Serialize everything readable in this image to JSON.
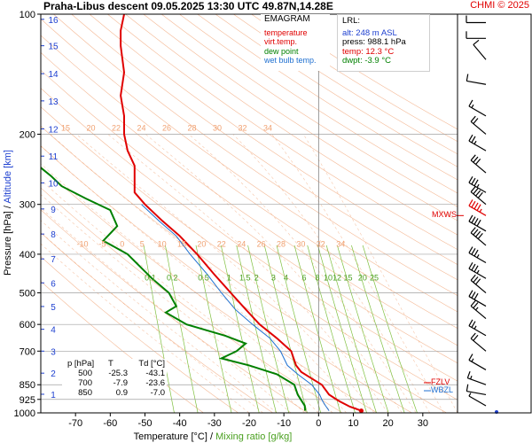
{
  "header": {
    "title": "Praha-Libus   descent   09.05.2025 13:30 UTC  49.87N,14.28E",
    "credit": "CHMI © 2025"
  },
  "legend": {
    "title": "EMAGRAM",
    "items": [
      {
        "label": "temperature",
        "color": "#e00000"
      },
      {
        "label": "virt.temp.",
        "color": "#e00000"
      },
      {
        "label": "dew point",
        "color": "#008000"
      },
      {
        "label": "wet bulb temp.",
        "color": "#1e6fd0"
      }
    ]
  },
  "lrl": {
    "title": "LRL:",
    "alt": "alt: 248 m ASL",
    "press": "press: 988.1 hPa",
    "temp": "temp: 12.3 °C",
    "dwpt": "dwpt: -3.9 °C"
  },
  "table": {
    "headers": [
      "p [hPa]",
      "T",
      "Td [°C]"
    ],
    "rows": [
      [
        "500",
        "-25.3",
        "-43.1"
      ],
      [
        "700",
        "-7.9",
        "-23.6"
      ],
      [
        "850",
        "0.9",
        "-7.0"
      ]
    ]
  },
  "markers": {
    "mxws": "MXWS",
    "fzlv": "FZLV",
    "wbzl": "WBZL"
  },
  "colors": {
    "temperature": "#e00000",
    "dewpoint": "#008000",
    "wetbulb": "#1e6fd0",
    "dry_adiabat": "#f0a070",
    "mixing_ratio": "#80c040",
    "isobar": "#a0a0a0"
  },
  "chart_data": {
    "type": "line",
    "title": "Praha-Libus   descent   09.05.2025 13:30 UTC  49.87N,14.28E",
    "xlabel": "Temperature [°C]",
    "xlabel2": "Mixing ratio [g/kg]",
    "ylabel": "Pressure [hPa]",
    "ylabel2": "Altitude [km]",
    "xlim": [
      -80,
      40
    ],
    "ylim": [
      1000,
      100
    ],
    "y_scale": "log",
    "x_ticks": [
      -70,
      -60,
      -50,
      -40,
      -30,
      -20,
      -10,
      0,
      10,
      20,
      30
    ],
    "pressure_ticks": [
      100,
      200,
      300,
      400,
      500,
      600,
      700,
      850,
      925,
      1000
    ],
    "altitude_ticks": [
      {
        "km": 1,
        "p": 898
      },
      {
        "km": 2,
        "p": 795
      },
      {
        "km": 3,
        "p": 700
      },
      {
        "km": 4,
        "p": 617
      },
      {
        "km": 5,
        "p": 541
      },
      {
        "km": 6,
        "p": 472
      },
      {
        "km": 7,
        "p": 411
      },
      {
        "km": 8,
        "p": 356
      },
      {
        "km": 9,
        "p": 308
      },
      {
        "km": 10,
        "p": 265
      },
      {
        "km": 11,
        "p": 227
      },
      {
        "km": 12,
        "p": 194
      },
      {
        "km": 13,
        "p": 165
      },
      {
        "km": 14,
        "p": 141
      },
      {
        "km": 15,
        "p": 120
      },
      {
        "km": 16,
        "p": 103
      }
    ],
    "dry_adiabat_labels": [
      15,
      20,
      22,
      24,
      26,
      28,
      30,
      32,
      34
    ],
    "moist_adiabat_labels": [
      -10,
      -5,
      0,
      5,
      10,
      15,
      20,
      22,
      24,
      26,
      28,
      30,
      32,
      34
    ],
    "mixing_ratio_labels": [
      0.1,
      0.2,
      0.5,
      1,
      1.5,
      2,
      3,
      4,
      6,
      8,
      10,
      12,
      15,
      20,
      25
    ],
    "series": [
      {
        "name": "temperature",
        "points": [
          [
            12.3,
            988
          ],
          [
            9,
            965
          ],
          [
            6,
            935
          ],
          [
            3,
            900
          ],
          [
            0.9,
            850
          ],
          [
            -2,
            820
          ],
          [
            -5,
            790
          ],
          [
            -6.5,
            760
          ],
          [
            -7.9,
            700
          ],
          [
            -12,
            650
          ],
          [
            -17,
            600
          ],
          [
            -21,
            550
          ],
          [
            -25.3,
            500
          ],
          [
            -30,
            450
          ],
          [
            -35,
            400
          ],
          [
            -40,
            360
          ],
          [
            -45,
            330
          ],
          [
            -50,
            300
          ],
          [
            -53,
            280
          ],
          [
            -53,
            260
          ],
          [
            -53,
            240
          ],
          [
            -55,
            220
          ],
          [
            -56,
            200
          ],
          [
            -56,
            180
          ],
          [
            -57,
            160
          ],
          [
            -56,
            140
          ],
          [
            -57,
            120
          ],
          [
            -57,
            110
          ],
          [
            -56,
            100
          ]
        ]
      },
      {
        "name": "dew point",
        "points": [
          [
            -3.9,
            988
          ],
          [
            -4,
            960
          ],
          [
            -5,
            930
          ],
          [
            -6,
            900
          ],
          [
            -7,
            850
          ],
          [
            -12,
            800
          ],
          [
            -20,
            760
          ],
          [
            -28,
            730
          ],
          [
            -23.6,
            700
          ],
          [
            -21,
            670
          ],
          [
            -27,
            640
          ],
          [
            -38,
            600
          ],
          [
            -44,
            560
          ],
          [
            -41,
            540
          ],
          [
            -43.1,
            500
          ],
          [
            -48,
            460
          ],
          [
            -55,
            400
          ],
          [
            -62,
            370
          ],
          [
            -58,
            340
          ],
          [
            -60,
            310
          ],
          [
            -67,
            290
          ],
          [
            -74,
            270
          ],
          [
            -77,
            255
          ],
          [
            -82,
            235
          ]
        ]
      },
      {
        "name": "wet bulb temp.",
        "points": [
          [
            3,
            988
          ],
          [
            2,
            960
          ],
          [
            1,
            930
          ],
          [
            0.3,
            900
          ],
          [
            -2,
            850
          ],
          [
            -6,
            800
          ],
          [
            -9,
            760
          ],
          [
            -11,
            700
          ],
          [
            -14,
            650
          ],
          [
            -19,
            600
          ],
          [
            -24,
            550
          ],
          [
            -28,
            500
          ],
          [
            -32,
            450
          ],
          [
            -37,
            400
          ],
          [
            -41,
            360
          ],
          [
            -46,
            330
          ],
          [
            -51,
            300
          ]
        ]
      }
    ],
    "wind_barbs": [
      {
        "p": 960,
        "dir": 300,
        "kt": 5
      },
      {
        "p": 900,
        "dir": 280,
        "kt": 10
      },
      {
        "p": 850,
        "dir": 290,
        "kt": 15
      },
      {
        "p": 780,
        "dir": 300,
        "kt": 15
      },
      {
        "p": 700,
        "dir": 310,
        "kt": 20
      },
      {
        "p": 640,
        "dir": 300,
        "kt": 25
      },
      {
        "p": 580,
        "dir": 310,
        "kt": 25
      },
      {
        "p": 540,
        "dir": 300,
        "kt": 30
      },
      {
        "p": 500,
        "dir": 310,
        "kt": 30
      },
      {
        "p": 460,
        "dir": 300,
        "kt": 35
      },
      {
        "p": 420,
        "dir": 300,
        "kt": 35
      },
      {
        "p": 380,
        "dir": 310,
        "kt": 40
      },
      {
        "p": 350,
        "dir": 300,
        "kt": 40
      },
      {
        "p": 320,
        "dir": 300,
        "kt": 45
      },
      {
        "p": 300,
        "dir": 310,
        "kt": 40
      },
      {
        "p": 280,
        "dir": 300,
        "kt": 35
      },
      {
        "p": 250,
        "dir": 310,
        "kt": 30
      },
      {
        "p": 220,
        "dir": 300,
        "kt": 25
      },
      {
        "p": 200,
        "dir": 310,
        "kt": 20
      },
      {
        "p": 180,
        "dir": 300,
        "kt": 15
      },
      {
        "p": 150,
        "dir": 280,
        "kt": 10
      },
      {
        "p": 130,
        "dir": 320,
        "kt": 10
      },
      {
        "p": 115,
        "dir": 270,
        "kt": 10
      },
      {
        "p": 105,
        "dir": 270,
        "kt": 10
      }
    ],
    "mxws_pressure": 320,
    "fzlv_pressure": 840,
    "wbzl_pressure": 880
  }
}
